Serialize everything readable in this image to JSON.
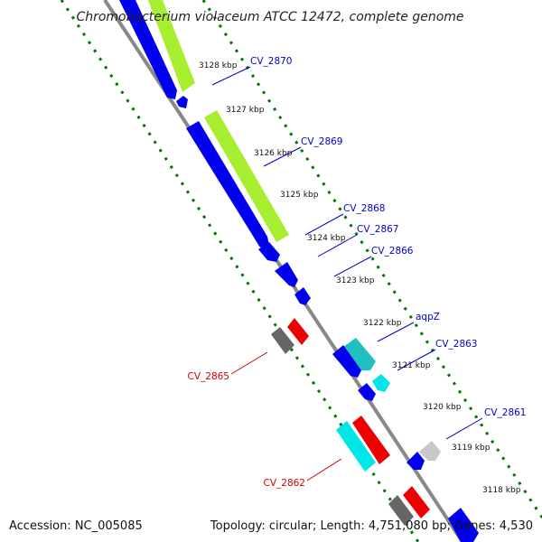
{
  "title": "Chromobacterium violaceum ATCC 12472, complete genome",
  "accession": "Accession: NC_005085",
  "summary": "Topology: circular; Length: 4,751,080 bp; Genes: 4,530",
  "colors": {
    "forward_label": "#0000cc",
    "reverse_label": "#cc0000",
    "backbone": "#888888",
    "dots": "#007700",
    "blue": "#0000ee",
    "cyan": "#00e5e5",
    "teal": "#20c0c0",
    "lime": "#a8ee30",
    "red": "#ee0000",
    "gray": "#666666",
    "silver": "#c8c8c8"
  },
  "ticks": [
    "3128 kbp",
    "3127 kbp",
    "3126 kbp",
    "3125 kbp",
    "3124 kbp",
    "3123 kbp",
    "3122 kbp",
    "3121 kbp",
    "3120 kbp",
    "3119 kbp",
    "3118 kbp"
  ],
  "gene_labels": [
    {
      "text": "CV_2870",
      "strand": "forward"
    },
    {
      "text": "CV_2869",
      "strand": "forward"
    },
    {
      "text": "CV_2868",
      "strand": "forward"
    },
    {
      "text": "CV_2867",
      "strand": "forward"
    },
    {
      "text": "CV_2866",
      "strand": "forward"
    },
    {
      "text": "aqpZ",
      "strand": "forward"
    },
    {
      "text": "CV_2863",
      "strand": "forward"
    },
    {
      "text": "CV_2861",
      "strand": "forward"
    },
    {
      "text": "CV_2865",
      "strand": "reverse"
    },
    {
      "text": "CV_2862",
      "strand": "reverse"
    }
  ]
}
